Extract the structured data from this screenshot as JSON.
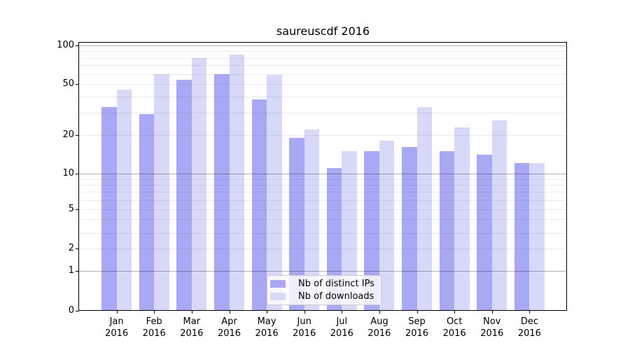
{
  "title": "saureuscdf 2016",
  "chart_data": {
    "type": "bar",
    "title": "saureuscdf 2016",
    "categories": [
      "Jan",
      "Feb",
      "Mar",
      "Apr",
      "May",
      "Jun",
      "Jul",
      "Aug",
      "Sep",
      "Oct",
      "Nov",
      "Dec"
    ],
    "year": "2016",
    "series": [
      {
        "name": "Nb of distinct IPs",
        "color": "#a8a8f4",
        "values": [
          33,
          29,
          54,
          60,
          38,
          19,
          11,
          15,
          16,
          15,
          14,
          12
        ]
      },
      {
        "name": "Nb of downloads",
        "color": "#d8d8f8",
        "values": [
          45,
          60,
          80,
          85,
          59,
          22,
          15,
          18,
          33,
          23,
          26,
          12
        ]
      }
    ],
    "xlabel": "",
    "ylabel": "",
    "yscale": "symlog",
    "ylim": [
      0,
      110
    ],
    "yticks": [
      0,
      1,
      2,
      5,
      10,
      20,
      50,
      100
    ],
    "grid": {
      "major": [
        1,
        10,
        100
      ],
      "minor": [
        2,
        3,
        4,
        5,
        6,
        7,
        8,
        9,
        20,
        30,
        40,
        50,
        60,
        70,
        80,
        90
      ]
    },
    "grid_on": true,
    "legend_position": "lower center"
  }
}
